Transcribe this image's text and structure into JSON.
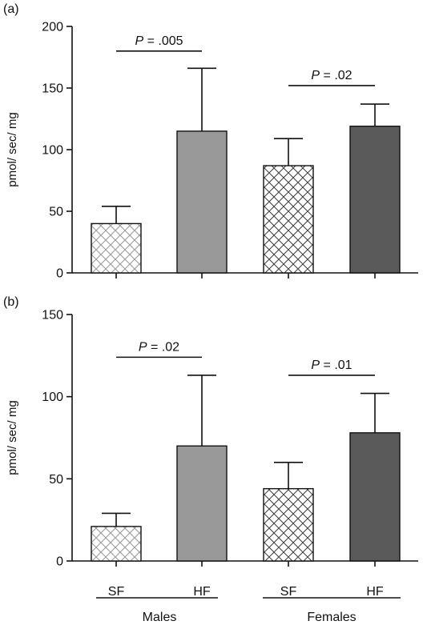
{
  "chart_data": [
    {
      "panel_label": "(a)",
      "type": "bar",
      "ylabel": "pmol/ sec/ mg",
      "ylim": [
        0,
        200
      ],
      "yticks": [
        "0",
        "50",
        "100",
        "150",
        "200"
      ],
      "ytick_values": [
        0,
        50,
        100,
        150,
        200
      ],
      "bars": [
        {
          "label": "SF",
          "group": "Males",
          "value": 40,
          "error": 14,
          "fill": "hatch-light"
        },
        {
          "label": "HF",
          "group": "Males",
          "value": 115,
          "error": 51,
          "fill": "#999999"
        },
        {
          "label": "SF",
          "group": "Females",
          "value": 87,
          "error": 22,
          "fill": "hatch-dark"
        },
        {
          "label": "HF",
          "group": "Females",
          "value": 119,
          "error": 18,
          "fill": "#5a5a5a"
        }
      ],
      "annotations": [
        {
          "p_prefix": "P",
          "p_rest": " = .005",
          "from": 0,
          "to": 1,
          "y": 180
        },
        {
          "p_prefix": "P",
          "p_rest": " = .02",
          "from": 2,
          "to": 3,
          "y": 152
        }
      ]
    },
    {
      "panel_label": "(b)",
      "type": "bar",
      "ylabel": "pmol/ sec/ mg",
      "ylim": [
        0,
        150
      ],
      "yticks": [
        "0",
        "50",
        "100",
        "150"
      ],
      "ytick_values": [
        0,
        50,
        100,
        150
      ],
      "bars": [
        {
          "label": "SF",
          "group": "Males",
          "value": 21,
          "error": 8,
          "fill": "hatch-light"
        },
        {
          "label": "HF",
          "group": "Males",
          "value": 70,
          "error": 43,
          "fill": "#999999"
        },
        {
          "label": "SF",
          "group": "Females",
          "value": 44,
          "error": 16,
          "fill": "hatch-dark"
        },
        {
          "label": "HF",
          "group": "Females",
          "value": 78,
          "error": 24,
          "fill": "#5a5a5a"
        }
      ],
      "annotations": [
        {
          "p_prefix": "P",
          "p_rest": " = .02",
          "from": 0,
          "to": 1,
          "y": 124
        },
        {
          "p_prefix": "P",
          "p_rest": " = .01",
          "from": 2,
          "to": 3,
          "y": 113
        }
      ]
    }
  ],
  "x_labels": [
    "SF",
    "HF",
    "SF",
    "HF"
  ],
  "groups": [
    "Males",
    "Females"
  ],
  "colors": {
    "axis": "#111111",
    "hatch_light": "#9a9a9a",
    "hatch_dark": "#444444"
  }
}
